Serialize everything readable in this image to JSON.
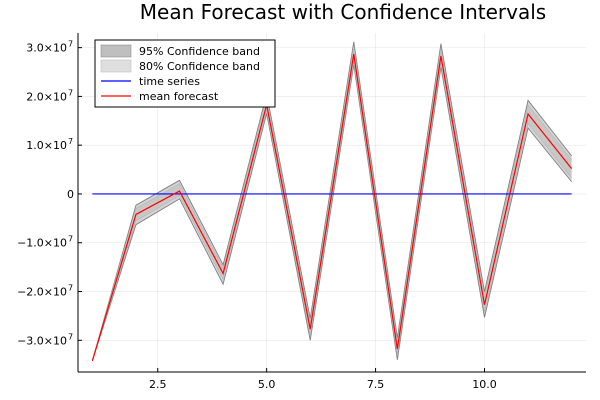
{
  "chart_data": {
    "type": "line",
    "title": "Mean Forecast with Confidence Intervals",
    "xlabel": "",
    "ylabel": "",
    "x": [
      1,
      2,
      3,
      4,
      5,
      6,
      7,
      8,
      9,
      10,
      11,
      12
    ],
    "xlim": [
      0.67,
      12.33
    ],
    "ylim": [
      -36500000,
      33000000
    ],
    "x_ticks": [
      2.5,
      5.0,
      7.5,
      10.0
    ],
    "x_tick_labels": [
      "2.5",
      "5.0",
      "7.5",
      "10.0"
    ],
    "y_ticks": [
      -30000000,
      -20000000,
      -10000000,
      0,
      10000000,
      20000000,
      30000000
    ],
    "y_tick_labels": [
      {
        "mantissa": "−3.0×10",
        "exp": "7"
      },
      {
        "mantissa": "−2.0×10",
        "exp": "7"
      },
      {
        "mantissa": "−1.0×10",
        "exp": "7"
      },
      {
        "mantissa": "0",
        "exp": ""
      },
      {
        "mantissa": "1.0×10",
        "exp": "7"
      },
      {
        "mantissa": "2.0×10",
        "exp": "7"
      },
      {
        "mantissa": "3.0×10",
        "exp": "7"
      }
    ],
    "grid": true,
    "legend_position": "top-left",
    "series": [
      {
        "name": "95% Confidence band",
        "kind": "band",
        "color": "#808080",
        "lower": [
          -34200000,
          -6300000,
          -1000000,
          -18500000,
          16500000,
          -30000000,
          26500000,
          -34000000,
          26000000,
          -25300000,
          13500000,
          2500000
        ],
        "upper": [
          -34200000,
          -2300000,
          2800000,
          -14500000,
          20500000,
          -25500000,
          31200000,
          -29500000,
          30800000,
          -20000000,
          19200000,
          7800000
        ]
      },
      {
        "name": "80% Confidence band",
        "kind": "band",
        "color": "#b8b8b8",
        "lower": [
          -34200000,
          -5500000,
          -300000,
          -17500000,
          17200000,
          -29000000,
          27300000,
          -33000000,
          26800000,
          -24300000,
          14500000,
          3300000
        ],
        "upper": [
          -34200000,
          -3000000,
          2100000,
          -15200000,
          19800000,
          -26500000,
          30300000,
          -30500000,
          29800000,
          -21000000,
          18200000,
          7000000
        ]
      },
      {
        "name": "time series",
        "kind": "line",
        "color": "#0000ff",
        "x": [
          1,
          12
        ],
        "values": [
          0,
          0
        ]
      },
      {
        "name": "mean forecast",
        "kind": "line",
        "color": "#ff0000",
        "values": [
          -34200000,
          -4200000,
          600000,
          -16300000,
          18300000,
          -27700000,
          28700000,
          -31800000,
          28300000,
          -22700000,
          16400000,
          5200000
        ]
      }
    ]
  }
}
